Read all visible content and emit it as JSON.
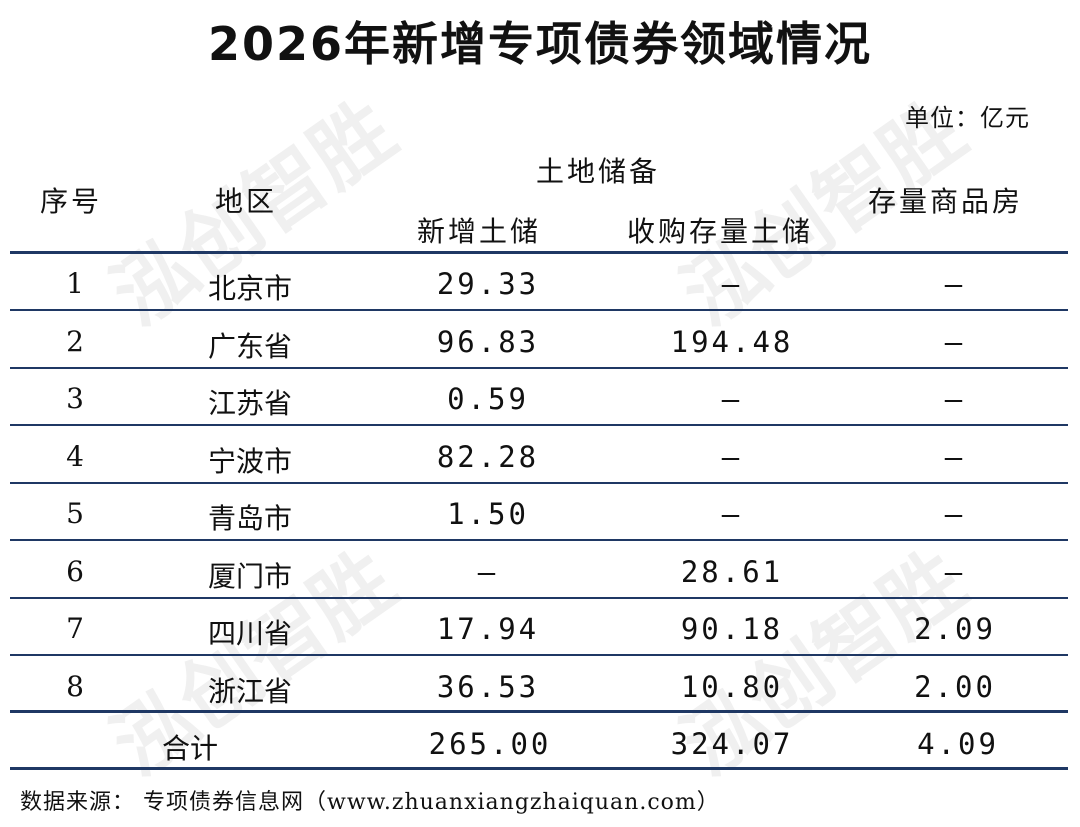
{
  "title": "2026年新增专项债券领域情况",
  "unit": "单位：亿元",
  "headers": {
    "index": "序号",
    "region": "地区",
    "land_group": "土地储备",
    "new_land": "新增土储",
    "acquire_land": "收购存量土储",
    "housing": "存量商品房"
  },
  "rows": [
    {
      "idx": "1",
      "region": "北京市",
      "new_land": "29.33",
      "acquire": "–",
      "housing": "–"
    },
    {
      "idx": "2",
      "region": "广东省",
      "new_land": "96.83",
      "acquire": "194.48",
      "housing": "–"
    },
    {
      "idx": "3",
      "region": "江苏省",
      "new_land": "0.59",
      "acquire": "–",
      "housing": "–"
    },
    {
      "idx": "4",
      "region": "宁波市",
      "new_land": "82.28",
      "acquire": "–",
      "housing": "–"
    },
    {
      "idx": "5",
      "region": "青岛市",
      "new_land": "1.50",
      "acquire": "–",
      "housing": "–"
    },
    {
      "idx": "6",
      "region": "厦门市",
      "new_land": "–",
      "acquire": "28.61",
      "housing": "–"
    },
    {
      "idx": "7",
      "region": "四川省",
      "new_land": "17.94",
      "acquire": "90.18",
      "housing": "2.09"
    },
    {
      "idx": "8",
      "region": "浙江省",
      "new_land": "36.53",
      "acquire": "10.80",
      "housing": "2.00"
    }
  ],
  "total": {
    "label": "合计",
    "new_land": "265.00",
    "acquire": "324.07",
    "housing": "4.09"
  },
  "footer": "数据来源：  专项债券信息网（www.zhuanxiangzhaiquan.com）",
  "watermark": "泓创智胜",
  "colors": {
    "rule": "#1f3864",
    "text": "#111111"
  }
}
